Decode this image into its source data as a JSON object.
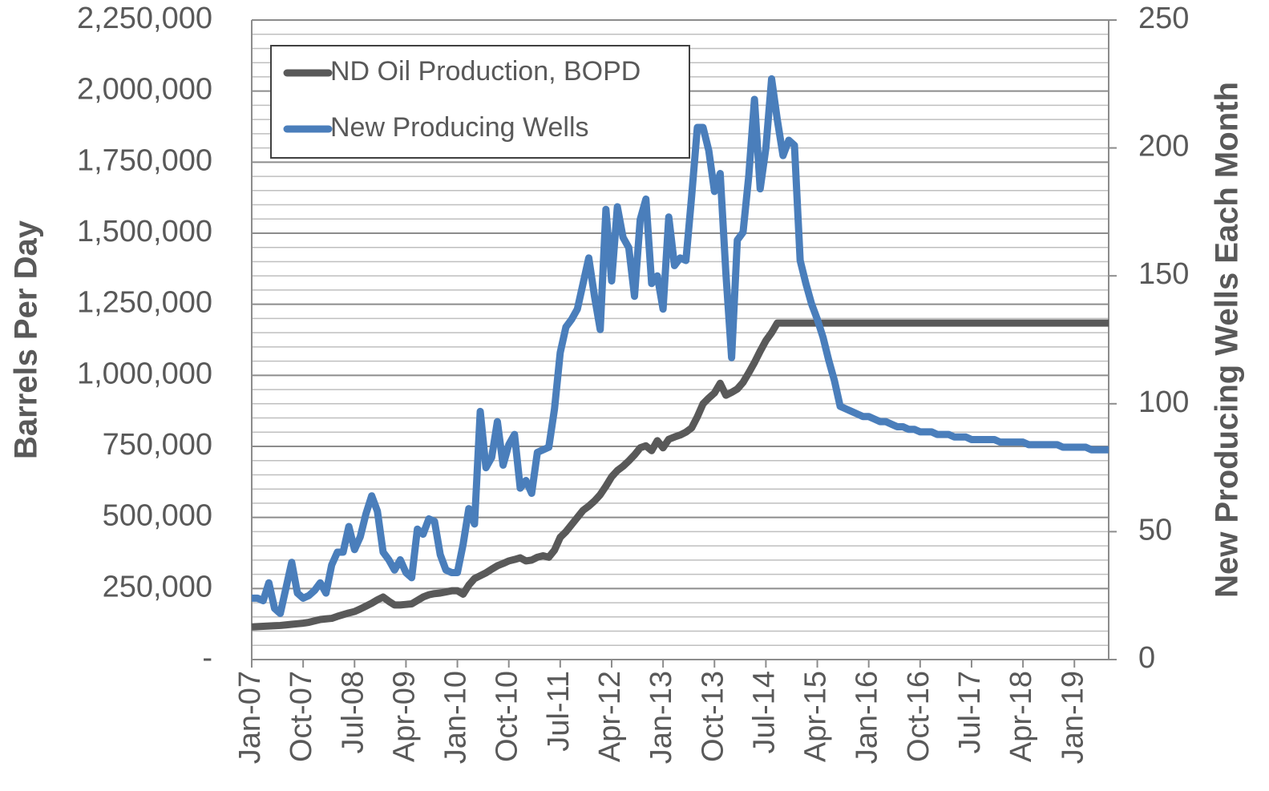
{
  "chart_data": {
    "type": "line",
    "y_label": "Barrels Per Day",
    "y2_label": "New Producing Wells Each Month",
    "categories": [
      "Jan-07",
      null,
      null,
      null,
      null,
      null,
      null,
      null,
      null,
      "Oct-07",
      null,
      null,
      null,
      null,
      null,
      null,
      null,
      null,
      "Jul-08",
      null,
      null,
      null,
      null,
      null,
      null,
      null,
      null,
      "Apr-09",
      null,
      null,
      null,
      null,
      null,
      null,
      null,
      null,
      "Jan-10",
      null,
      null,
      null,
      null,
      null,
      null,
      null,
      null,
      "Oct-10",
      null,
      null,
      null,
      null,
      null,
      null,
      null,
      null,
      "Jul-11",
      null,
      null,
      null,
      null,
      null,
      null,
      null,
      null,
      "Apr-12",
      null,
      null,
      null,
      null,
      null,
      null,
      null,
      null,
      "Jan-13",
      null,
      null,
      null,
      null,
      null,
      null,
      null,
      null,
      "Oct-13",
      null,
      null,
      null,
      null,
      null,
      null,
      null,
      null,
      "Jul-14",
      null,
      null,
      null,
      null,
      null,
      null,
      null,
      null,
      "Apr-15",
      null,
      null,
      null,
      null,
      null,
      null,
      null,
      null,
      "Jan-16",
      null,
      null,
      null,
      null,
      null,
      null,
      null,
      null,
      "Oct-16",
      null,
      null,
      null,
      null,
      null,
      null,
      null,
      null,
      "Jul-17",
      null,
      null,
      null,
      null,
      null,
      null,
      null,
      null,
      "Apr-18",
      null,
      null,
      null,
      null,
      null,
      null,
      null,
      null,
      "Jan-19",
      null,
      null,
      null,
      null,
      null,
      null
    ],
    "series": [
      {
        "name": "ND Oil Production, BOPD",
        "color": "#595959",
        "axis": "y",
        "values": [
          115000,
          116000,
          117000,
          118000,
          119000,
          120000,
          122000,
          124000,
          126000,
          128000,
          131000,
          136000,
          141000,
          143000,
          145000,
          152000,
          158000,
          164000,
          169000,
          178000,
          188000,
          198000,
          210000,
          220000,
          205000,
          192000,
          192000,
          194000,
          196000,
          208000,
          220000,
          228000,
          232000,
          234000,
          238000,
          242000,
          242000,
          230000,
          262000,
          285000,
          295000,
          305000,
          318000,
          330000,
          338000,
          347000,
          352000,
          358000,
          347000,
          350000,
          360000,
          365000,
          360000,
          385000,
          430000,
          450000,
          475000,
          500000,
          525000,
          540000,
          558000,
          580000,
          610000,
          643000,
          665000,
          680000,
          699000,
          720000,
          745000,
          752000,
          735000,
          770000,
          745000,
          775000,
          783000,
          790000,
          800000,
          815000,
          854000,
          900000,
          920000,
          938000,
          972000,
          930000,
          940000,
          952000,
          975000,
          1009000,
          1045000,
          1085000,
          1122000,
          1150000,
          1184000,
          1184000,
          1184000,
          1184000,
          1184000,
          1184000,
          1184000,
          1184000,
          1184000,
          1184000,
          1184000,
          1184000,
          1184000,
          1184000,
          1184000,
          1184000,
          1184000,
          1184000,
          1184000,
          1184000,
          1184000,
          1184000,
          1184000,
          1184000,
          1184000,
          1184000,
          1184000,
          1184000,
          1184000,
          1184000,
          1184000,
          1184000,
          1184000,
          1184000,
          1184000,
          1184000,
          1184000,
          1184000,
          1184000,
          1184000,
          1184000,
          1184000,
          1184000,
          1184000,
          1184000,
          1184000,
          1184000,
          1184000,
          1184000,
          1184000,
          1184000,
          1184000,
          1184000,
          1184000,
          1184000,
          1184000,
          1184000,
          1184000,
          1184000
        ]
      },
      {
        "name": "New Producing Wells",
        "color": "#4a7ebb",
        "axis": "y2",
        "values": [
          24,
          24,
          23,
          30,
          20,
          18,
          28,
          38,
          26,
          24,
          25,
          27,
          30,
          26,
          37,
          42,
          42,
          52,
          43,
          48,
          57,
          64,
          58,
          42,
          39,
          35,
          39,
          34,
          32,
          51,
          49,
          55,
          54,
          41,
          35,
          34,
          34,
          45,
          59,
          53,
          97,
          75,
          79,
          93,
          76,
          84,
          88,
          67,
          70,
          65,
          81,
          82,
          83,
          98,
          120,
          130,
          133,
          137,
          147,
          157,
          142,
          129,
          176,
          148,
          177,
          165,
          161,
          142,
          172,
          180,
          147,
          150,
          137,
          173,
          154,
          157,
          156,
          181,
          208,
          208,
          199,
          183,
          190,
          151,
          118,
          164,
          167,
          189,
          219,
          184,
          200,
          227,
          211,
          197,
          203,
          201,
          156,
          147,
          139,
          133,
          126,
          117,
          109,
          99,
          98,
          97,
          96,
          95,
          95,
          94,
          93,
          93,
          92,
          91,
          91,
          90,
          90,
          89,
          89,
          89,
          88,
          88,
          88,
          87,
          87,
          87,
          86,
          86,
          86,
          86,
          86,
          85,
          85,
          85,
          85,
          85,
          84,
          84,
          84,
          84,
          84,
          84,
          83,
          83,
          83,
          83,
          83,
          82,
          82,
          82,
          82
        ]
      }
    ],
    "ylim": [
      0,
      2250000
    ],
    "yticks": [
      {
        "value": 0,
        "label": "-"
      },
      {
        "value": 250000,
        "label": "250,000"
      },
      {
        "value": 500000,
        "label": "500,000"
      },
      {
        "value": 750000,
        "label": "750,000"
      },
      {
        "value": 1000000,
        "label": "1,000,000"
      },
      {
        "value": 1250000,
        "label": "1,250,000"
      },
      {
        "value": 1500000,
        "label": "1,500,000"
      },
      {
        "value": 1750000,
        "label": "1,750,000"
      },
      {
        "value": 2000000,
        "label": "2,000,000"
      },
      {
        "value": 2250000,
        "label": "2,250,000"
      }
    ],
    "y2lim": [
      0,
      250
    ],
    "y2ticks": [
      0,
      50,
      100,
      150,
      200,
      250
    ],
    "grid": true,
    "minor_grid_per_major": 5,
    "legend": "upper left"
  }
}
